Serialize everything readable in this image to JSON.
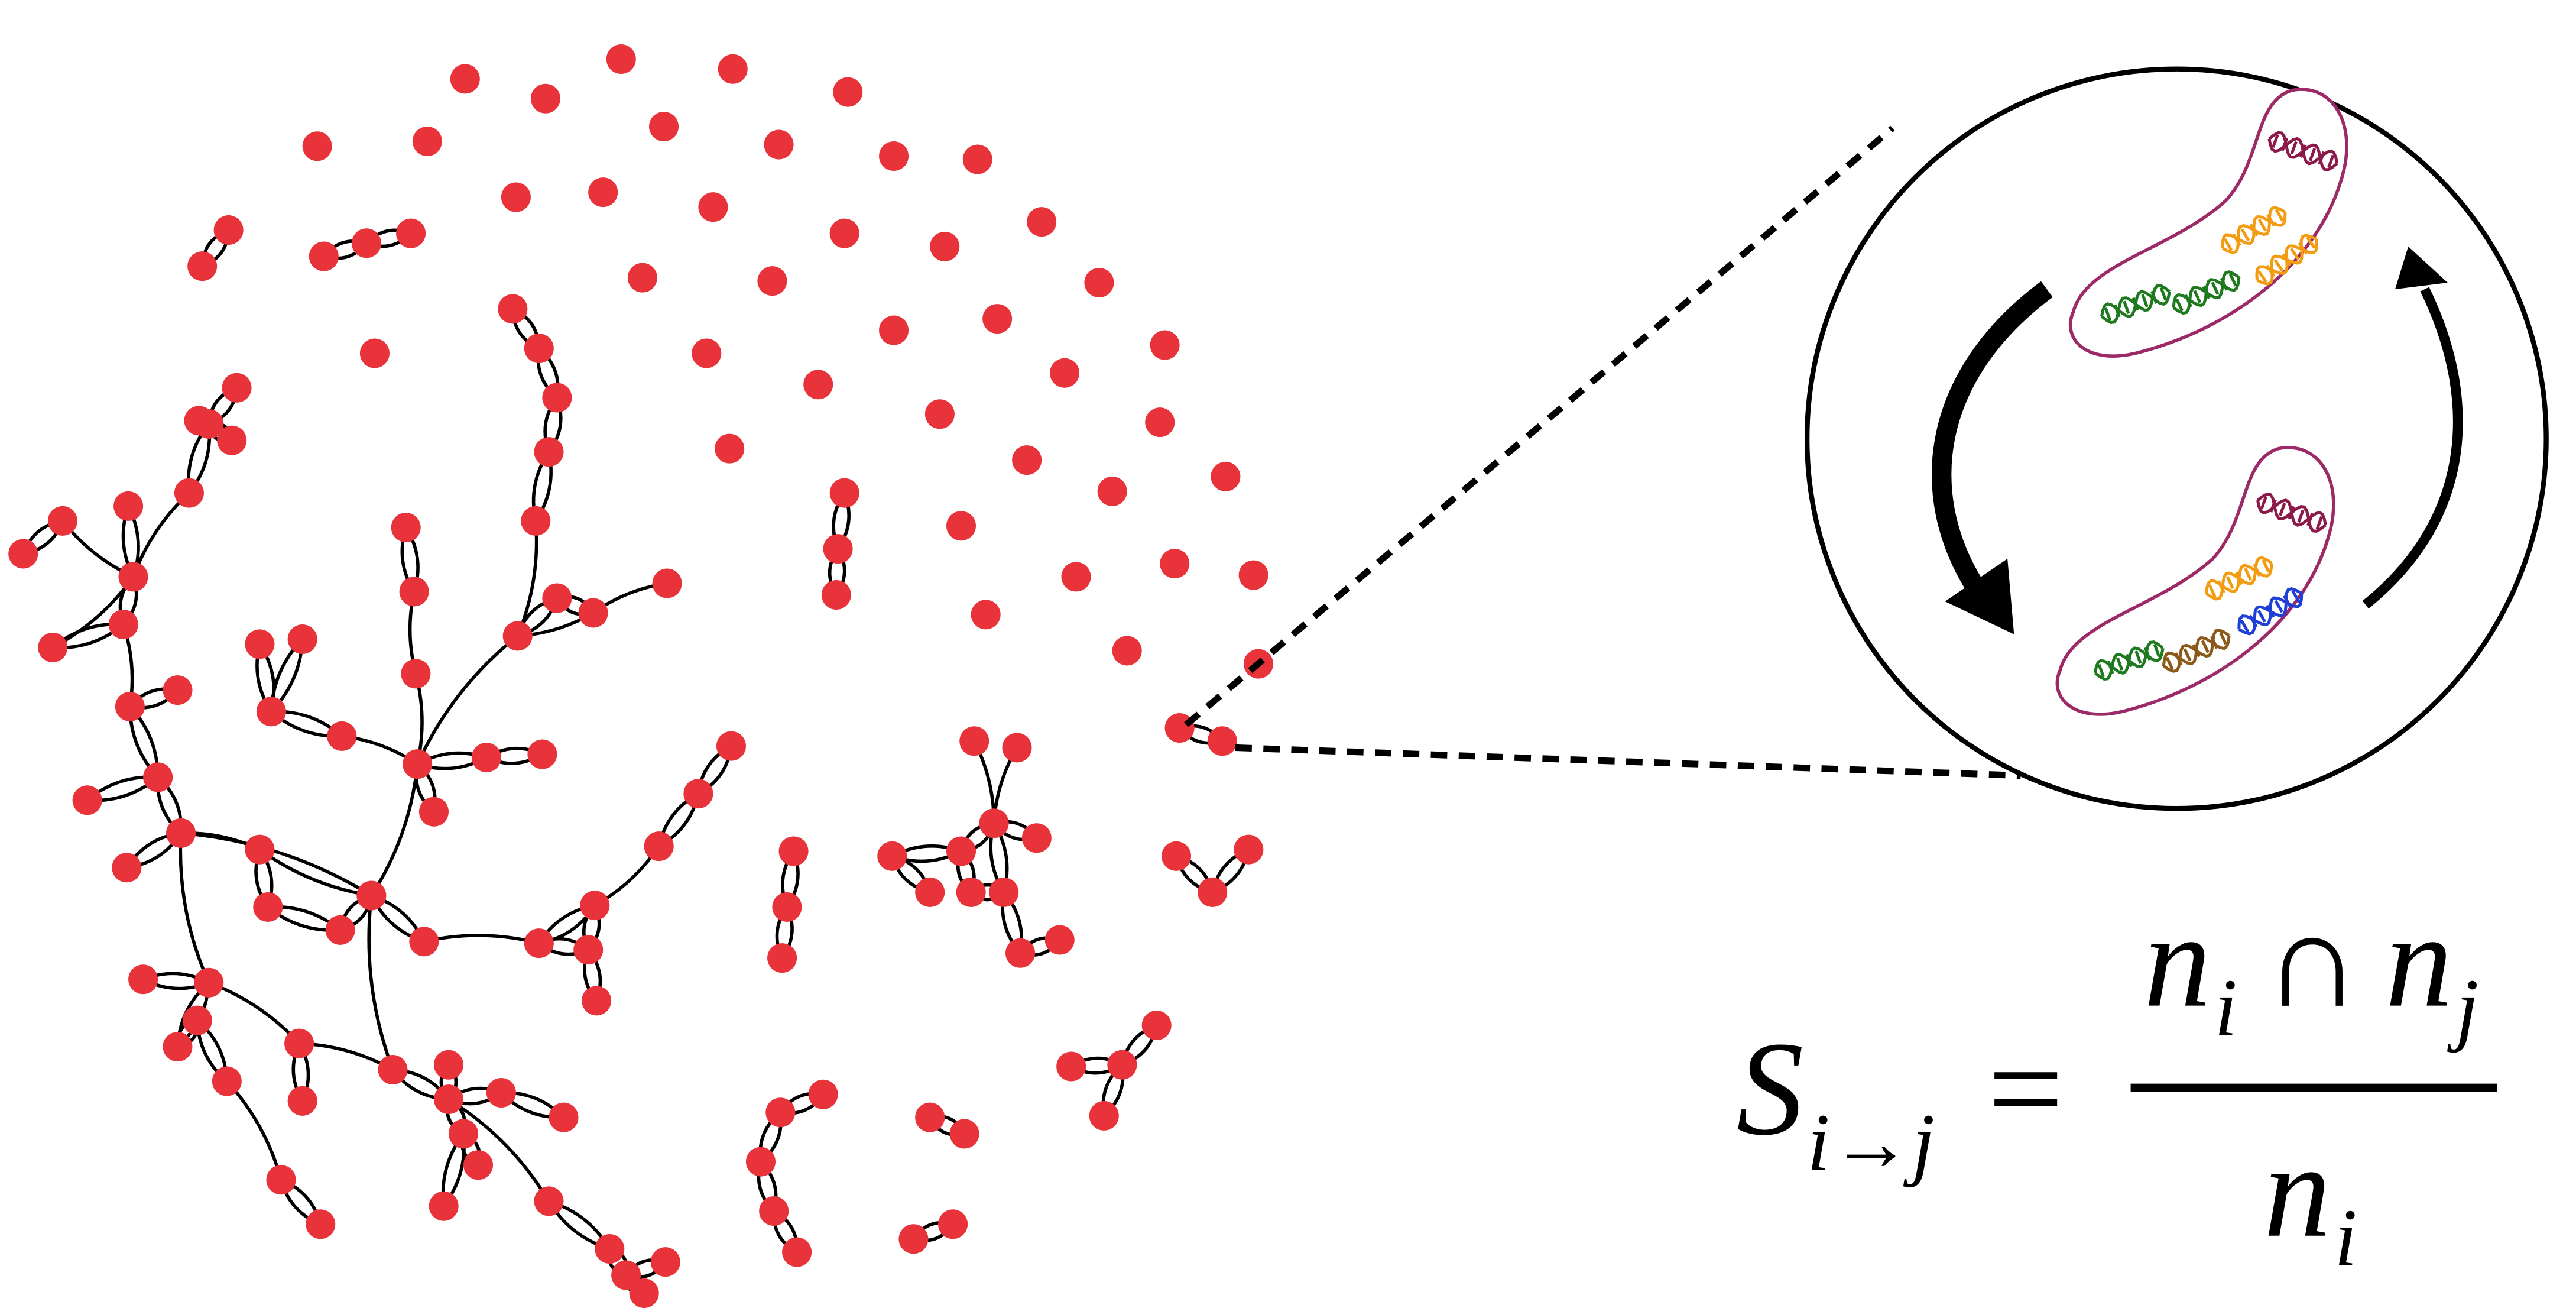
{
  "formula": {
    "lhs": {
      "symbol": "S",
      "subscript": "i→j"
    },
    "equals": "=",
    "numerator": {
      "left": {
        "symbol": "n",
        "subscript": "i"
      },
      "operator": "∩",
      "right": {
        "symbol": "n",
        "subscript": "j"
      }
    },
    "denominator": {
      "symbol": "n",
      "subscript": "i"
    }
  }
}
